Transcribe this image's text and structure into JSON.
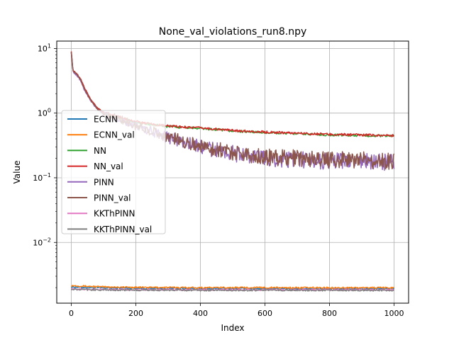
{
  "chart_data": {
    "type": "line",
    "title": "None_val_violations_run8.npy",
    "xlabel": "Index",
    "ylabel": "Value",
    "xlim": [
      -45,
      1045
    ],
    "ylim": [
      0.00115,
      13
    ],
    "yscale": "log",
    "grid": true,
    "legend_position": "center-left",
    "x_ticks": [
      {
        "value": 0,
        "label": "0"
      },
      {
        "value": 200,
        "label": "200"
      },
      {
        "value": 400,
        "label": "400"
      },
      {
        "value": 600,
        "label": "600"
      },
      {
        "value": 800,
        "label": "800"
      },
      {
        "value": 1000,
        "label": "1000"
      }
    ],
    "y_ticks": [
      {
        "value": 0.01,
        "base": "10",
        "exp": "−2"
      },
      {
        "value": 0.1,
        "base": "10",
        "exp": "−1"
      },
      {
        "value": 1,
        "base": "10",
        "exp": "0"
      },
      {
        "value": 10,
        "base": "10",
        "exp": "1"
      }
    ],
    "series": [
      {
        "name": "ECNN",
        "color": "#1f77b4",
        "points": [
          [
            0,
            0.00205
          ],
          [
            100,
            0.00198
          ],
          [
            200,
            0.00196
          ],
          [
            300,
            0.00195
          ],
          [
            400,
            0.00194
          ],
          [
            500,
            0.00194
          ],
          [
            600,
            0.00194
          ],
          [
            700,
            0.00193
          ],
          [
            800,
            0.00193
          ],
          [
            900,
            0.00193
          ],
          [
            1000,
            0.00193
          ]
        ]
      },
      {
        "name": "ECNN_val",
        "color": "#ff7f0e",
        "points": [
          [
            0,
            0.00215
          ],
          [
            100,
            0.00205
          ],
          [
            200,
            0.00202
          ],
          [
            300,
            0.00201
          ],
          [
            400,
            0.002
          ],
          [
            500,
            0.002
          ],
          [
            600,
            0.002
          ],
          [
            700,
            0.00199
          ],
          [
            800,
            0.00199
          ],
          [
            900,
            0.00199
          ],
          [
            1000,
            0.00199
          ]
        ]
      },
      {
        "name": "NN",
        "color": "#2ca02c",
        "points": [
          [
            0,
            8.9
          ],
          [
            5,
            4.5
          ],
          [
            20,
            3.8
          ],
          [
            30,
            3.2
          ],
          [
            40,
            2.4
          ],
          [
            50,
            2.0
          ],
          [
            60,
            1.6
          ],
          [
            80,
            1.2
          ],
          [
            100,
            1.0
          ],
          [
            150,
            0.85
          ],
          [
            200,
            0.72
          ],
          [
            250,
            0.66
          ],
          [
            300,
            0.62
          ],
          [
            400,
            0.58
          ],
          [
            500,
            0.53
          ],
          [
            600,
            0.5
          ],
          [
            700,
            0.48
          ],
          [
            800,
            0.46
          ],
          [
            900,
            0.45
          ],
          [
            1000,
            0.44
          ]
        ]
      },
      {
        "name": "NN_val",
        "color": "#d62728",
        "points": [
          [
            0,
            9.2
          ],
          [
            5,
            4.6
          ],
          [
            20,
            3.9
          ],
          [
            30,
            3.3
          ],
          [
            40,
            2.5
          ],
          [
            50,
            2.05
          ],
          [
            60,
            1.65
          ],
          [
            80,
            1.22
          ],
          [
            100,
            1.02
          ],
          [
            150,
            0.87
          ],
          [
            200,
            0.74
          ],
          [
            250,
            0.67
          ],
          [
            300,
            0.63
          ],
          [
            400,
            0.59
          ],
          [
            500,
            0.54
          ],
          [
            600,
            0.51
          ],
          [
            700,
            0.49
          ],
          [
            800,
            0.47
          ],
          [
            900,
            0.46
          ],
          [
            1000,
            0.45
          ]
        ]
      },
      {
        "name": "PINN",
        "color": "#9467bd",
        "points": [
          [
            0,
            8.8
          ],
          [
            5,
            4.4
          ],
          [
            20,
            3.7
          ],
          [
            30,
            3.1
          ],
          [
            40,
            2.3
          ],
          [
            50,
            1.9
          ],
          [
            60,
            1.55
          ],
          [
            80,
            1.15
          ],
          [
            100,
            0.95
          ],
          [
            150,
            0.8
          ],
          [
            200,
            0.62
          ],
          [
            250,
            0.52
          ],
          [
            300,
            0.42
          ],
          [
            400,
            0.3
          ],
          [
            500,
            0.24
          ],
          [
            600,
            0.2
          ],
          [
            700,
            0.19
          ],
          [
            800,
            0.18
          ],
          [
            900,
            0.18
          ],
          [
            1000,
            0.17
          ]
        ]
      },
      {
        "name": "PINN_val",
        "color": "#8c564b",
        "points": [
          [
            0,
            9.0
          ],
          [
            5,
            4.5
          ],
          [
            20,
            3.8
          ],
          [
            30,
            3.2
          ],
          [
            40,
            2.4
          ],
          [
            50,
            1.95
          ],
          [
            60,
            1.6
          ],
          [
            80,
            1.18
          ],
          [
            100,
            0.97
          ],
          [
            150,
            0.82
          ],
          [
            200,
            0.63
          ],
          [
            250,
            0.53
          ],
          [
            300,
            0.43
          ],
          [
            400,
            0.31
          ],
          [
            500,
            0.25
          ],
          [
            600,
            0.21
          ],
          [
            700,
            0.2
          ],
          [
            800,
            0.19
          ],
          [
            900,
            0.19
          ],
          [
            1000,
            0.18
          ]
        ]
      },
      {
        "name": "KKThPINN",
        "color": "#e377c2",
        "points": [
          [
            0,
            0.0019
          ],
          [
            100,
            0.00187
          ],
          [
            200,
            0.00186
          ],
          [
            300,
            0.00186
          ],
          [
            400,
            0.00185
          ],
          [
            500,
            0.00185
          ],
          [
            600,
            0.00185
          ],
          [
            700,
            0.00185
          ],
          [
            800,
            0.00185
          ],
          [
            900,
            0.00185
          ],
          [
            1000,
            0.00185
          ]
        ]
      },
      {
        "name": "KKThPINN_val",
        "color": "#7f7f7f",
        "points": [
          [
            0,
            0.00188
          ],
          [
            100,
            0.00184
          ],
          [
            200,
            0.00183
          ],
          [
            300,
            0.00183
          ],
          [
            400,
            0.00182
          ],
          [
            500,
            0.00182
          ],
          [
            600,
            0.00182
          ],
          [
            700,
            0.00182
          ],
          [
            800,
            0.00182
          ],
          [
            900,
            0.00182
          ],
          [
            1000,
            0.00182
          ]
        ]
      }
    ]
  }
}
